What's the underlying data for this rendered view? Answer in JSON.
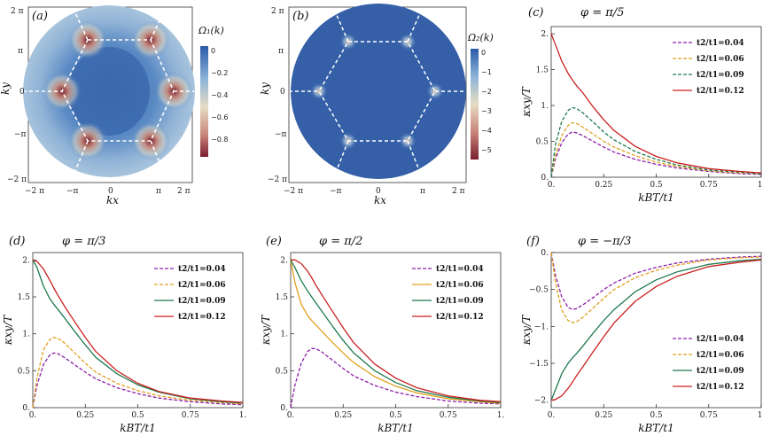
{
  "figure": {
    "panel_a": {
      "label": "(a)",
      "colorbar_title": "Ω₁(k)",
      "colorbar_ticks": [
        "0",
        "−0.2",
        "−0.4",
        "−0.6",
        "−0.8"
      ],
      "xlabel": "kx",
      "ylabel": "ky",
      "x_ticks": [
        "−2 π",
        "−π",
        "0",
        "π",
        "2 π"
      ],
      "y_ticks": [
        "2 π",
        "π",
        "0",
        "−π",
        "−2 π"
      ]
    },
    "panel_b": {
      "label": "(b)",
      "colorbar_title": "Ω₂(k)",
      "colorbar_ticks": [
        "0",
        "−1",
        "−2",
        "−3",
        "−4",
        "−5"
      ],
      "xlabel": "kx",
      "ylabel": "ky",
      "x_ticks": [
        "−2 π",
        "−π",
        "0",
        "π",
        "2 π"
      ],
      "y_ticks": [
        "2 π",
        "π",
        "0",
        "−π",
        "−2 π"
      ]
    },
    "colors": {
      "t004": "#8b1fa8",
      "t006": "#e0a020",
      "t009": "#1e7a4e",
      "t012": "#cc1f1f",
      "heat_low": "#3560a8",
      "heat_high": "#7a1e2e"
    }
  },
  "chart_data": [
    {
      "id": "c",
      "type": "line",
      "label": "(c)",
      "title": "φ = π/5",
      "xlabel": "kBT/t1",
      "ylabel": "κxy/T",
      "xlim": [
        0,
        1
      ],
      "ylim": [
        0,
        2.1
      ],
      "x_ticks": [
        "0.",
        "0.25",
        "0.5",
        "0.75",
        "1."
      ],
      "y_ticks": [
        "0.",
        "0.5",
        "1.",
        "1.5",
        "2."
      ],
      "y_tick_values": [
        0,
        0.5,
        1,
        1.5,
        2
      ],
      "legend_position": "top-right",
      "x": [
        0,
        0.02,
        0.05,
        0.08,
        0.1,
        0.12,
        0.15,
        0.2,
        0.25,
        0.3,
        0.4,
        0.5,
        0.6,
        0.75,
        0.9,
        1.0
      ],
      "series": [
        {
          "name": "t2/t1=0.04",
          "style": "dashed",
          "color_key": "t004",
          "values": [
            0,
            0.25,
            0.48,
            0.6,
            0.63,
            0.62,
            0.58,
            0.5,
            0.42,
            0.35,
            0.25,
            0.18,
            0.13,
            0.08,
            0.05,
            0.04
          ]
        },
        {
          "name": "t2/t1=0.06",
          "style": "dashed",
          "color_key": "t006",
          "values": [
            0,
            0.3,
            0.58,
            0.72,
            0.76,
            0.75,
            0.7,
            0.6,
            0.5,
            0.42,
            0.3,
            0.21,
            0.15,
            0.09,
            0.06,
            0.05
          ]
        },
        {
          "name": "t2/t1=0.09",
          "style": "dashed",
          "color_key": "t009",
          "values": [
            0,
            0.45,
            0.78,
            0.93,
            0.97,
            0.96,
            0.9,
            0.77,
            0.63,
            0.52,
            0.36,
            0.25,
            0.17,
            0.1,
            0.07,
            0.05
          ]
        },
        {
          "name": "t2/t1=0.12",
          "style": "solid",
          "color_key": "t012",
          "values": [
            2.0,
            1.85,
            1.62,
            1.45,
            1.36,
            1.28,
            1.18,
            0.98,
            0.8,
            0.65,
            0.43,
            0.29,
            0.2,
            0.12,
            0.08,
            0.06
          ]
        }
      ]
    },
    {
      "id": "d",
      "type": "line",
      "label": "(d)",
      "title": "φ = π/3",
      "xlabel": "kBT/t1",
      "ylabel": "κxy/T",
      "xlim": [
        0,
        1
      ],
      "ylim": [
        0,
        2.1
      ],
      "x_ticks": [
        "0.",
        "0.25",
        "0.5",
        "0.75",
        "1."
      ],
      "y_ticks": [
        "0.",
        "0.5",
        "1.",
        "1.5",
        "2."
      ],
      "y_tick_values": [
        0,
        0.5,
        1,
        1.5,
        2
      ],
      "legend_position": "top-right",
      "x": [
        0,
        0.02,
        0.05,
        0.08,
        0.1,
        0.12,
        0.15,
        0.2,
        0.25,
        0.3,
        0.4,
        0.5,
        0.6,
        0.75,
        0.9,
        1.0
      ],
      "series": [
        {
          "name": "t2/t1=0.04",
          "style": "dashed",
          "color_key": "t004",
          "values": [
            0,
            0.3,
            0.58,
            0.71,
            0.74,
            0.73,
            0.68,
            0.58,
            0.48,
            0.39,
            0.27,
            0.19,
            0.13,
            0.08,
            0.05,
            0.04
          ]
        },
        {
          "name": "t2/t1=0.06",
          "style": "dashed",
          "color_key": "t006",
          "values": [
            0,
            0.4,
            0.78,
            0.92,
            0.95,
            0.94,
            0.88,
            0.74,
            0.6,
            0.48,
            0.33,
            0.23,
            0.16,
            0.1,
            0.07,
            0.05
          ]
        },
        {
          "name": "t2/t1=0.09",
          "style": "solid",
          "color_key": "t009",
          "values": [
            2.0,
            1.9,
            1.65,
            1.48,
            1.4,
            1.33,
            1.22,
            1.03,
            0.85,
            0.68,
            0.46,
            0.31,
            0.21,
            0.12,
            0.08,
            0.06
          ]
        },
        {
          "name": "t2/t1=0.12",
          "style": "solid",
          "color_key": "t012",
          "values": [
            2.0,
            1.98,
            1.88,
            1.73,
            1.62,
            1.52,
            1.38,
            1.16,
            0.95,
            0.76,
            0.5,
            0.33,
            0.22,
            0.13,
            0.09,
            0.07
          ]
        }
      ]
    },
    {
      "id": "e",
      "type": "line",
      "label": "(e)",
      "title": "φ = π/2",
      "xlabel": "kBT/t1",
      "ylabel": "κxy/T",
      "xlim": [
        0,
        1
      ],
      "ylim": [
        0,
        2.1
      ],
      "x_ticks": [
        "0.",
        "0.25",
        "0.5",
        "0.75",
        "1."
      ],
      "y_ticks": [
        "0.",
        "0.5",
        "1.",
        "1.5",
        "2."
      ],
      "y_tick_values": [
        0,
        0.5,
        1,
        1.5,
        2
      ],
      "legend_position": "top-right",
      "x": [
        0,
        0.02,
        0.05,
        0.08,
        0.1,
        0.12,
        0.15,
        0.2,
        0.25,
        0.3,
        0.4,
        0.5,
        0.6,
        0.75,
        0.9,
        1.0
      ],
      "series": [
        {
          "name": "t2/t1=0.04",
          "style": "dashed",
          "color_key": "t004",
          "values": [
            0,
            0.3,
            0.6,
            0.76,
            0.8,
            0.8,
            0.75,
            0.64,
            0.53,
            0.43,
            0.3,
            0.21,
            0.15,
            0.09,
            0.06,
            0.05
          ]
        },
        {
          "name": "t2/t1=0.06",
          "style": "solid",
          "color_key": "t006",
          "values": [
            2.0,
            1.7,
            1.4,
            1.25,
            1.18,
            1.12,
            1.03,
            0.88,
            0.74,
            0.61,
            0.42,
            0.29,
            0.2,
            0.12,
            0.08,
            0.06
          ]
        },
        {
          "name": "t2/t1=0.09",
          "style": "solid",
          "color_key": "t009",
          "values": [
            2.0,
            1.9,
            1.72,
            1.58,
            1.5,
            1.42,
            1.3,
            1.1,
            0.91,
            0.74,
            0.5,
            0.34,
            0.23,
            0.14,
            0.09,
            0.07
          ]
        },
        {
          "name": "t2/t1=0.12",
          "style": "solid",
          "color_key": "t012",
          "values": [
            2.0,
            2.0,
            1.95,
            1.85,
            1.76,
            1.66,
            1.52,
            1.3,
            1.08,
            0.88,
            0.59,
            0.4,
            0.27,
            0.16,
            0.1,
            0.08
          ]
        }
      ]
    },
    {
      "id": "f",
      "type": "line",
      "label": "(f)",
      "title": "φ = −π/3",
      "xlabel": "kBT/t1",
      "ylabel": "κxy/T",
      "xlim": [
        0,
        1
      ],
      "ylim": [
        -2.1,
        0
      ],
      "x_ticks": [
        "0.",
        "0.25",
        "0.5",
        "0.75",
        "1."
      ],
      "y_ticks": [
        "0.",
        "−0.5",
        "−1.",
        "−1.5",
        "−2."
      ],
      "y_tick_values": [
        0,
        -0.5,
        -1,
        -1.5,
        -2
      ],
      "legend_position": "bottom-right",
      "x": [
        0,
        0.02,
        0.05,
        0.08,
        0.1,
        0.12,
        0.15,
        0.2,
        0.25,
        0.3,
        0.4,
        0.5,
        0.6,
        0.75,
        0.9,
        1.0
      ],
      "series": [
        {
          "name": "t2/t1=0.04",
          "style": "dashed",
          "color_key": "t004",
          "values": [
            0,
            -0.3,
            -0.6,
            -0.74,
            -0.77,
            -0.76,
            -0.71,
            -0.61,
            -0.5,
            -0.41,
            -0.28,
            -0.2,
            -0.14,
            -0.09,
            -0.06,
            -0.05
          ]
        },
        {
          "name": "t2/t1=0.06",
          "style": "dashed",
          "color_key": "t006",
          "values": [
            0,
            -0.4,
            -0.78,
            -0.92,
            -0.95,
            -0.94,
            -0.88,
            -0.75,
            -0.62,
            -0.5,
            -0.34,
            -0.24,
            -0.17,
            -0.1,
            -0.07,
            -0.06
          ]
        },
        {
          "name": "t2/t1=0.09",
          "style": "solid",
          "color_key": "t009",
          "values": [
            -2.0,
            -1.86,
            -1.64,
            -1.5,
            -1.43,
            -1.37,
            -1.27,
            -1.09,
            -0.92,
            -0.77,
            -0.53,
            -0.37,
            -0.26,
            -0.16,
            -0.11,
            -0.09
          ]
        },
        {
          "name": "t2/t1=0.12",
          "style": "solid",
          "color_key": "t012",
          "values": [
            -2.0,
            -1.99,
            -1.94,
            -1.84,
            -1.76,
            -1.67,
            -1.55,
            -1.34,
            -1.14,
            -0.95,
            -0.66,
            -0.46,
            -0.32,
            -0.19,
            -0.13,
            -0.1
          ]
        }
      ]
    }
  ]
}
